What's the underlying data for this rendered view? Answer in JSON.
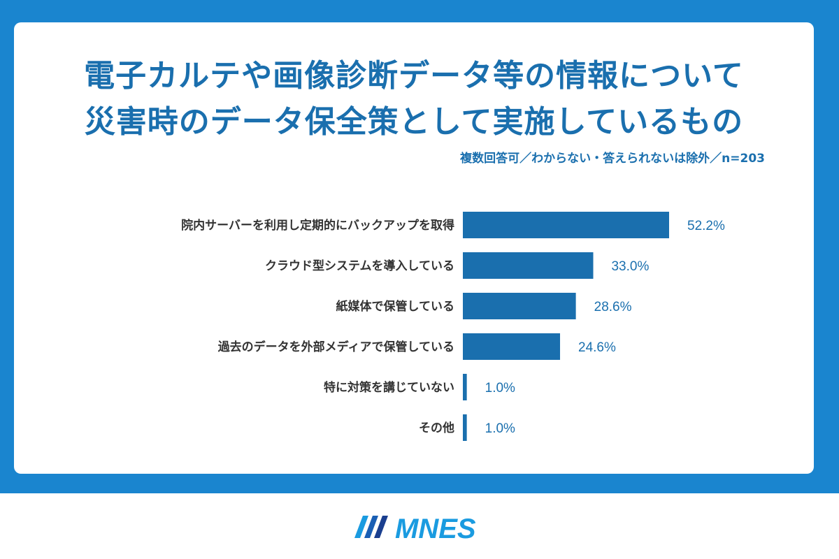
{
  "header": {
    "title_lines": [
      "電子カルテや画像診断データ等の情報について",
      "災害時のデータ保全策として実施しているもの"
    ],
    "subtitle": "複数回答可／わからない・答えられないは除外／n=203"
  },
  "chart_data": {
    "type": "bar",
    "orientation": "horizontal",
    "categories": [
      "院内サーバーを利用し定期的にバックアップを取得",
      "クラウド型システムを導入している",
      "紙媒体で保管している",
      "過去のデータを外部メディアで保管している",
      "特に対策を講じていない",
      "その他"
    ],
    "values": [
      52.2,
      33.0,
      28.6,
      24.6,
      1.0,
      1.0
    ],
    "value_labels": [
      "52.2%",
      "33.0%",
      "28.6%",
      "24.6%",
      "1.0%",
      "1.0%"
    ],
    "unit": "%",
    "xlim": [
      0,
      52.2
    ],
    "grid": false,
    "legend": "none"
  },
  "footer": {
    "logo_text": "MNES"
  },
  "colors": {
    "frame": "#1a85cf",
    "bar": "#1a6fae",
    "title": "#1a6fae",
    "logo_light": "#1a9be0",
    "logo_dark": "#1a3f8f"
  }
}
